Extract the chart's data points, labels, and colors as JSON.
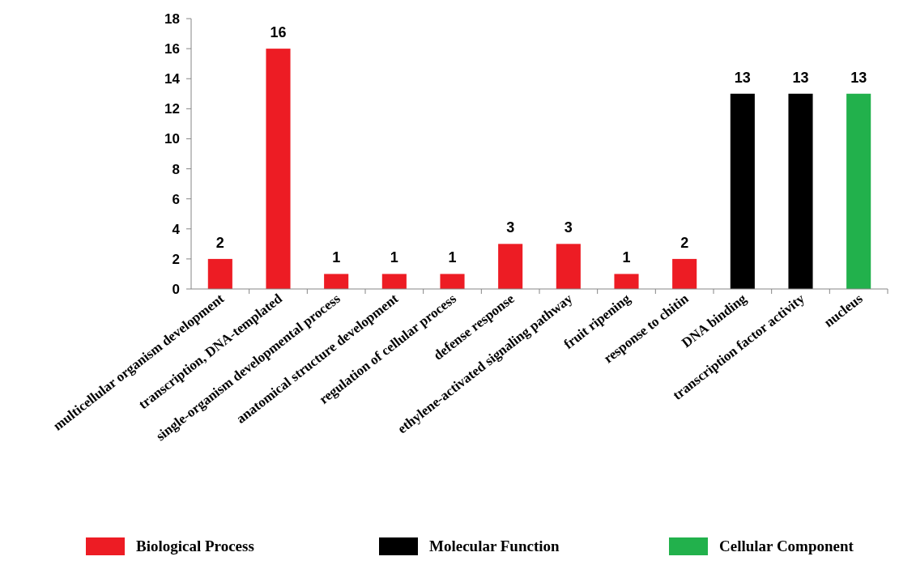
{
  "chart_data": {
    "type": "bar",
    "categories": [
      "multicellular organism development",
      "transcription, DNA-templated",
      "single-organism developmental process",
      "anatomical structure development",
      "regulation of cellular process",
      "defense response",
      "ethylene-activated signaling pathway",
      "fruit ripening",
      "response to chitin",
      "DNA binding",
      "transcription factor activity",
      "nucleus"
    ],
    "series": [
      {
        "name": "Biological Process",
        "color": "#ed1c24",
        "values": [
          2,
          16,
          1,
          1,
          1,
          3,
          3,
          1,
          2,
          null,
          null,
          null
        ]
      },
      {
        "name": "Molecular Function",
        "color": "#000000",
        "values": [
          null,
          null,
          null,
          null,
          null,
          null,
          null,
          null,
          null,
          13,
          13,
          null
        ]
      },
      {
        "name": "Cellular Component",
        "color": "#22b14c",
        "values": [
          null,
          null,
          null,
          null,
          null,
          null,
          null,
          null,
          null,
          null,
          null,
          13
        ]
      }
    ],
    "ylim": [
      0,
      18
    ],
    "yticks": [
      0,
      2,
      4,
      6,
      8,
      10,
      12,
      14,
      16,
      18
    ],
    "data_labels": true,
    "grid": false,
    "legend": "bottom"
  }
}
